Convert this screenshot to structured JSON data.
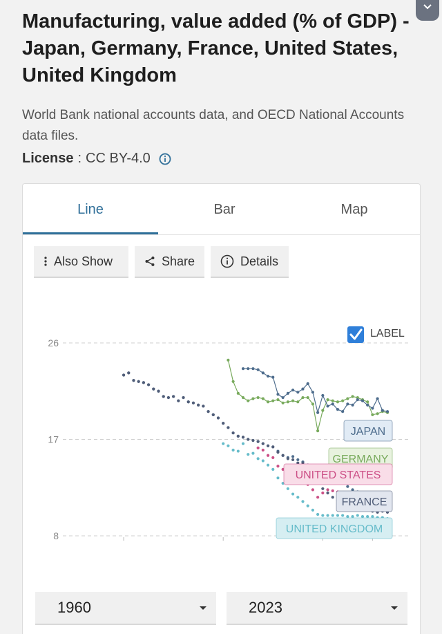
{
  "title": "Manufacturing, value added (% of GDP) - Japan, Germany, France, United States, United Kingdom",
  "source": "World Bank national accounts data, and OECD National Accounts data files.",
  "license": {
    "label": "License",
    "separator": ":",
    "value": "CC BY-4.0"
  },
  "tabs": [
    {
      "label": "Line",
      "active": true
    },
    {
      "label": "Bar",
      "active": false
    },
    {
      "label": "Map",
      "active": false
    }
  ],
  "toolbar": {
    "also_show": "Also Show",
    "share": "Share",
    "details": "Details"
  },
  "label_toggle": {
    "label": "LABEL",
    "checked": true
  },
  "range": {
    "start": "1960",
    "end": "2023"
  },
  "icons": {
    "collapse": "chevron-down-icon",
    "info": "info-icon",
    "also_show": "vertical-dots-icon",
    "share": "share-icon",
    "details": "info-icon",
    "checkbox": "checkbox-icon",
    "dropdown": "caret-down-icon"
  },
  "colors": {
    "accent": "#2f6f99",
    "japan": "#4d6c8c",
    "germany": "#78aa5c",
    "united_states": "#cc4f86",
    "france": "#505d78",
    "united_kingdom": "#66bcca"
  },
  "chart_data": {
    "type": "line",
    "title": "",
    "xlabel": "",
    "ylabel": "",
    "xlim": [
      1960,
      2023
    ],
    "ylim": [
      8,
      26
    ],
    "yticks": [
      8,
      17,
      26
    ],
    "grid": true,
    "legend": "end-labels",
    "series": [
      {
        "name": "JAPAN",
        "key": "japan",
        "line": false,
        "x": [
          1970,
          1971,
          1972,
          1973,
          1974,
          1975,
          1976,
          1977,
          1978,
          1979,
          1980,
          1981,
          1982,
          1983,
          1984,
          1985,
          1986,
          1987,
          1988,
          1989,
          1990,
          1991,
          1992,
          1993,
          1994,
          1995,
          1996,
          1997,
          1998,
          1999,
          2000,
          2001,
          2002,
          2003,
          2004,
          2005,
          2006,
          2007,
          2008,
          2009,
          2010,
          2011,
          2012,
          2013,
          2014,
          2015,
          2016,
          2017,
          2018,
          2019,
          2020,
          2021,
          2022
        ],
        "values": [
          23.0,
          23.2,
          22.5,
          22.4,
          22.3,
          22.1,
          21.7,
          21.5,
          21.0,
          20.9,
          21.0,
          20.6,
          20.9,
          20.5,
          20.4,
          20.2,
          20.1,
          19.6,
          19.3,
          19.0,
          18.5,
          18.1,
          17.6,
          17.3,
          17.2,
          17.0,
          16.9,
          16.8,
          16.6,
          16.4,
          16.3,
          15.9,
          15.5,
          15.3,
          15.4,
          15.1,
          14.9,
          14.6,
          14.5,
          14.3,
          14.5,
          14.0,
          13.6,
          13.2,
          12.9,
          12.6,
          12.3,
          12.1,
          11.8,
          11.6,
          11.3,
          11.0,
          10.8
        ]
      },
      {
        "name": "GERMANY",
        "key": "germany",
        "line": true,
        "x": [
          1991,
          1992,
          1993,
          1994,
          1995,
          1996,
          1997,
          1998,
          1999,
          2000,
          2001,
          2002,
          2003,
          2004,
          2005,
          2006,
          2007,
          2008,
          2009,
          2010,
          2011,
          2012,
          2013,
          2014,
          2015,
          2016,
          2017,
          2018,
          2019,
          2020,
          2021,
          2022,
          2023
        ],
        "values": [
          24.4,
          22.4,
          21.3,
          20.9,
          20.6,
          20.8,
          20.9,
          20.8,
          20.5,
          20.6,
          20.7,
          20.4,
          20.5,
          20.6,
          20.5,
          20.9,
          20.9,
          20.3,
          17.8,
          19.7,
          20.7,
          20.6,
          20.5,
          20.6,
          20.8,
          21.0,
          20.9,
          20.7,
          20.5,
          19.3,
          19.4,
          19.6,
          19.5
        ]
      },
      {
        "name": "JAPAN",
        "key": "japan_recent",
        "line": true,
        "x": [
          1994,
          1995,
          1996,
          1997,
          1998,
          1999,
          2000,
          2001,
          2002,
          2003,
          2004,
          2005,
          2006,
          2007,
          2008,
          2009,
          2010,
          2011,
          2012,
          2013,
          2014,
          2015,
          2016,
          2017,
          2018,
          2019,
          2020,
          2021,
          2022,
          2023
        ],
        "values": [
          23.6,
          23.6,
          23.6,
          23.5,
          23.2,
          22.9,
          22.8,
          21.2,
          20.9,
          21.3,
          21.6,
          21.4,
          21.7,
          22.2,
          21.4,
          19.5,
          21.1,
          20.1,
          20.3,
          19.8,
          19.6,
          20.3,
          20.2,
          20.7,
          20.6,
          20.2,
          19.9,
          20.8,
          19.7,
          19.6
        ]
      },
      {
        "name": "FRANCE",
        "key": "france",
        "line": false,
        "x": [
          1970,
          1971,
          1972,
          1973,
          1974,
          1975,
          1976,
          1977,
          1978,
          1979,
          1980,
          1981,
          1982,
          1983,
          1984,
          1985,
          1986,
          1987,
          1988,
          1989,
          1990,
          1991,
          1992,
          1993,
          1994,
          1995,
          1996,
          1997,
          1998,
          1999,
          2000,
          2001,
          2002,
          2003,
          2004,
          2005,
          2006,
          2007,
          2008,
          2009,
          2010,
          2011,
          2012,
          2013,
          2014,
          2015,
          2016,
          2017,
          2018,
          2019,
          2020,
          2021,
          2022,
          2023
        ],
        "values": [
          23.0,
          23.2,
          22.5,
          22.4,
          22.3,
          22.1,
          21.7,
          21.5,
          21.0,
          20.9,
          21.0,
          20.6,
          20.9,
          20.5,
          20.4,
          20.2,
          20.1,
          19.6,
          19.3,
          19.0,
          18.5,
          18.1,
          17.6,
          17.3,
          17.2,
          17.0,
          16.9,
          16.8,
          16.6,
          16.4,
          16.3,
          15.8,
          15.5,
          15.2,
          15.1,
          14.8,
          14.8,
          14.6,
          13.7,
          13.0,
          12.4,
          12.0,
          11.6,
          11.3,
          11.0,
          10.5,
          10.6,
          10.6,
          10.6,
          10.5,
          10.3,
          10.2,
          10.3,
          10.2
        ]
      },
      {
        "name": "UNITED STATES",
        "key": "united_states",
        "line": false,
        "x": [
          1997,
          1998,
          1999,
          2000,
          2001,
          2002,
          2003,
          2004,
          2005,
          2006,
          2007,
          2008,
          2009,
          2010,
          2011,
          2012,
          2013,
          2014,
          2015,
          2016,
          2017,
          2018,
          2019,
          2020,
          2021,
          2022
        ],
        "values": [
          16.2,
          16.0,
          15.5,
          15.3,
          14.5,
          14.2,
          13.7,
          13.6,
          13.2,
          13.1,
          12.8,
          12.3,
          11.6,
          12.0,
          12.3,
          12.2,
          12.1,
          12.0,
          11.7,
          11.2,
          11.2,
          11.4,
          11.0,
          10.8,
          10.7,
          10.6
        ]
      },
      {
        "name": "UNITED KINGDOM",
        "key": "united_kingdom",
        "line": false,
        "x": [
          1990,
          1991,
          1992,
          1993,
          1994,
          1995,
          1996,
          1997,
          1998,
          1999,
          2000,
          2001,
          2002,
          2003,
          2004,
          2005,
          2006,
          2007,
          2008,
          2009,
          2010,
          2011,
          2012,
          2013,
          2014,
          2015,
          2016,
          2017,
          2018,
          2019,
          2020,
          2021,
          2022,
          2023
        ],
        "values": [
          16.6,
          16.4,
          16.0,
          15.9,
          16.6,
          15.6,
          15.7,
          15.2,
          15.0,
          14.6,
          14.2,
          13.4,
          12.9,
          12.4,
          11.9,
          11.6,
          11.2,
          10.8,
          10.4,
          10.0,
          9.9,
          9.9,
          9.9,
          9.9,
          9.9,
          9.8,
          9.8,
          9.9,
          9.8,
          9.8,
          9.8,
          9.7,
          9.7,
          9.6
        ]
      }
    ],
    "end_labels": [
      {
        "text": "JAPAN",
        "key": "japan"
      },
      {
        "text": "GERMANY",
        "key": "germany"
      },
      {
        "text": "UNITED STATES",
        "key": "united_states"
      },
      {
        "text": "FRANCE",
        "key": "france"
      },
      {
        "text": "UNITED KINGDOM",
        "key": "united_kingdom"
      }
    ]
  }
}
